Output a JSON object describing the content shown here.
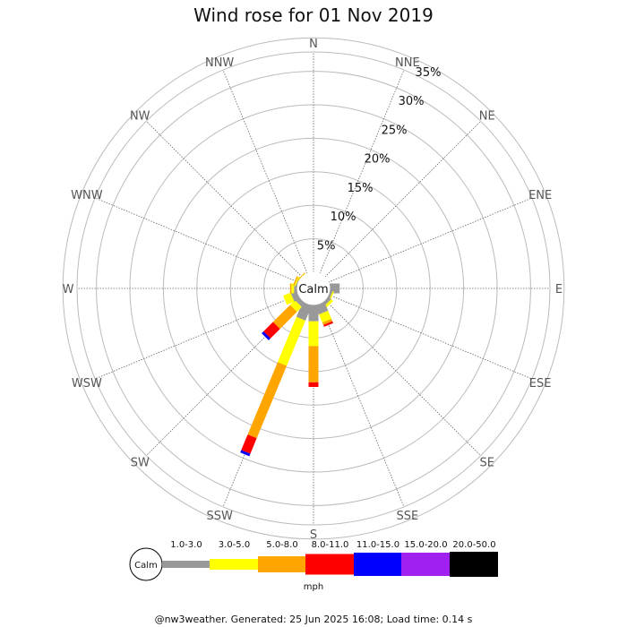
{
  "chart_data": {
    "type": "windrose",
    "title": "Wind rose for 01 Nov 2019",
    "calm_label": "Calm",
    "directions": [
      "N",
      "NNE",
      "NE",
      "ENE",
      "E",
      "ESE",
      "SE",
      "SSE",
      "S",
      "SSW",
      "SW",
      "WSW",
      "W",
      "WNW",
      "NW",
      "NNW"
    ],
    "rings_pct": [
      5,
      10,
      15,
      20,
      25,
      30,
      35
    ],
    "ring_labels": [
      "5%",
      "10%",
      "15%",
      "20%",
      "25%",
      "30%",
      "35%"
    ],
    "speed_bins": [
      {
        "label": "1.0-3.0",
        "color": "#999999"
      },
      {
        "label": "3.0-5.0",
        "color": "#ffff00"
      },
      {
        "label": "5.0-8.0",
        "color": "#ffa500"
      },
      {
        "label": "8.0-11.0",
        "color": "#ff0000"
      },
      {
        "label": "11.0-15.0",
        "color": "#0000ff"
      },
      {
        "label": "15.0-20.0",
        "color": "#a020f0"
      },
      {
        "label": "20.0-50.0",
        "color": "#000000"
      }
    ],
    "unit": "mph",
    "frequencies_pct": {
      "N": [
        0,
        0,
        0,
        0,
        0,
        0,
        0
      ],
      "NNE": [
        0,
        0,
        0,
        0,
        0,
        0,
        0
      ],
      "NE": [
        0,
        0,
        0,
        0,
        0,
        0,
        0
      ],
      "ENE": [
        0,
        0,
        0,
        0,
        0,
        0,
        0
      ],
      "E": [
        1.5,
        0,
        0,
        0,
        0,
        0,
        0
      ],
      "ESE": [
        0.4,
        0.2,
        0,
        0,
        0,
        0,
        0
      ],
      "SE": [
        0.6,
        0.4,
        0,
        0,
        0,
        0,
        0
      ],
      "SSE": [
        1.5,
        1.3,
        0.4,
        0.3,
        0,
        0,
        0
      ],
      "S": [
        2.5,
        3.7,
        5.4,
        0.7,
        0,
        0,
        0
      ],
      "SSW": [
        2.5,
        7.3,
        11.7,
        2.5,
        0.4,
        0,
        0
      ],
      "SW": [
        0.8,
        1.0,
        3.6,
        2.0,
        0.4,
        0,
        0
      ],
      "WSW": [
        1.0,
        1.2,
        0,
        0,
        0,
        0,
        0
      ],
      "W": [
        0.5,
        0.4,
        0.2,
        0,
        0,
        0,
        0
      ],
      "WNW": [
        0.2,
        0.2,
        0.2,
        0,
        0,
        0,
        0
      ],
      "NW": [
        0,
        0.1,
        0.1,
        0,
        0,
        0,
        0
      ],
      "NNW": [
        0,
        0,
        0,
        0,
        0,
        0,
        0
      ]
    }
  },
  "footer": "@nw3weather. Generated: 25 Jun 2025 16:08; Load time: 0.14 s"
}
